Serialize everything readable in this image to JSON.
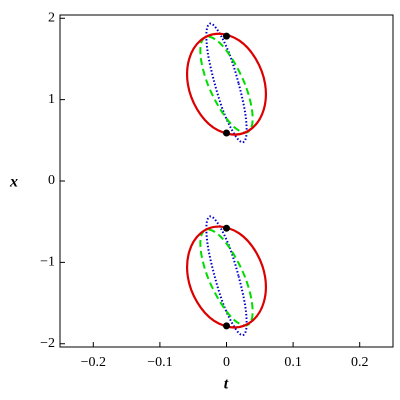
{
  "chart_data": {
    "type": "line",
    "xlabel": "t",
    "ylabel": "x",
    "xlim": [
      -0.25,
      0.25
    ],
    "ylim": [
      -2.04,
      2.04
    ],
    "xticks": [
      {
        "value": -0.2,
        "label": "−0.2"
      },
      {
        "value": -0.1,
        "label": "−0.1"
      },
      0,
      0.1,
      0.2
    ],
    "yticks": [
      {
        "value": -2,
        "label": "−2"
      },
      {
        "value": -1,
        "label": "−1"
      },
      0,
      1,
      2
    ],
    "series": [
      {
        "color": "#0000cc",
        "style": "dotted",
        "x": [
          0.018,
          0.004,
          -0.012,
          -0.024,
          -0.03,
          -0.028,
          -0.018,
          -0.004,
          0.012,
          0.024,
          0.03,
          0.028,
          0.018
        ],
        "values": [
          1.205,
          1.57,
          1.837,
          1.935,
          1.837,
          1.57,
          1.205,
          0.84,
          0.573,
          0.475,
          0.573,
          0.84,
          1.205
        ]
      },
      {
        "color": "#00dd00",
        "style": "dashed",
        "x": [
          0.028,
          0.01,
          -0.01,
          -0.028,
          -0.038,
          -0.038,
          -0.028,
          -0.01,
          0.01,
          0.028,
          0.038,
          0.038,
          0.028
        ],
        "values": [
          1.185,
          1.48,
          1.696,
          1.775,
          1.696,
          1.48,
          1.185,
          0.89,
          0.674,
          0.595,
          0.674,
          0.89,
          1.185
        ]
      },
      {
        "color": "#dd0000",
        "style": "solid",
        "x": [
          0.058,
          0.044,
          0.019,
          -0.012,
          -0.039,
          -0.056,
          -0.058,
          -0.044,
          -0.019,
          0.012,
          0.039,
          0.056,
          0.058
        ],
        "values": [
          1.19,
          1.5,
          1.727,
          1.81,
          1.727,
          1.5,
          1.19,
          0.88,
          0.653,
          0.57,
          0.653,
          0.88,
          1.19
        ]
      },
      {
        "color": "#0000cc",
        "style": "dotted",
        "x": [
          0.018,
          0.004,
          -0.012,
          -0.024,
          -0.03,
          -0.028,
          -0.018,
          -0.004,
          0.012,
          0.024,
          0.03,
          0.028,
          0.018
        ],
        "values": [
          -1.165,
          -0.8,
          -0.533,
          -0.435,
          -0.533,
          -0.8,
          -1.165,
          -1.53,
          -1.797,
          -1.895,
          -1.797,
          -1.53,
          -1.165
        ]
      },
      {
        "color": "#00dd00",
        "style": "dashed",
        "x": [
          0.028,
          0.01,
          -0.01,
          -0.028,
          -0.038,
          -0.038,
          -0.028,
          -0.01,
          0.01,
          0.028,
          0.038,
          0.038,
          0.028
        ],
        "values": [
          -1.185,
          -0.89,
          -0.674,
          -0.595,
          -0.674,
          -0.89,
          -1.185,
          -1.48,
          -1.696,
          -1.775,
          -1.696,
          -1.48,
          -1.185
        ]
      },
      {
        "color": "#dd0000",
        "style": "solid",
        "x": [
          0.058,
          0.044,
          0.019,
          -0.012,
          -0.039,
          -0.056,
          -0.058,
          -0.044,
          -0.019,
          0.012,
          0.039,
          0.056,
          0.058
        ],
        "values": [
          -1.18,
          -0.87,
          -0.643,
          -0.56,
          -0.643,
          -0.87,
          -1.18,
          -1.49,
          -1.717,
          -1.8,
          -1.717,
          -1.49,
          -1.18
        ]
      }
    ],
    "points": {
      "color": "#000000",
      "x": [
        0,
        0,
        0,
        0
      ],
      "values": [
        1.78,
        0.59,
        -0.58,
        -1.78
      ]
    }
  }
}
